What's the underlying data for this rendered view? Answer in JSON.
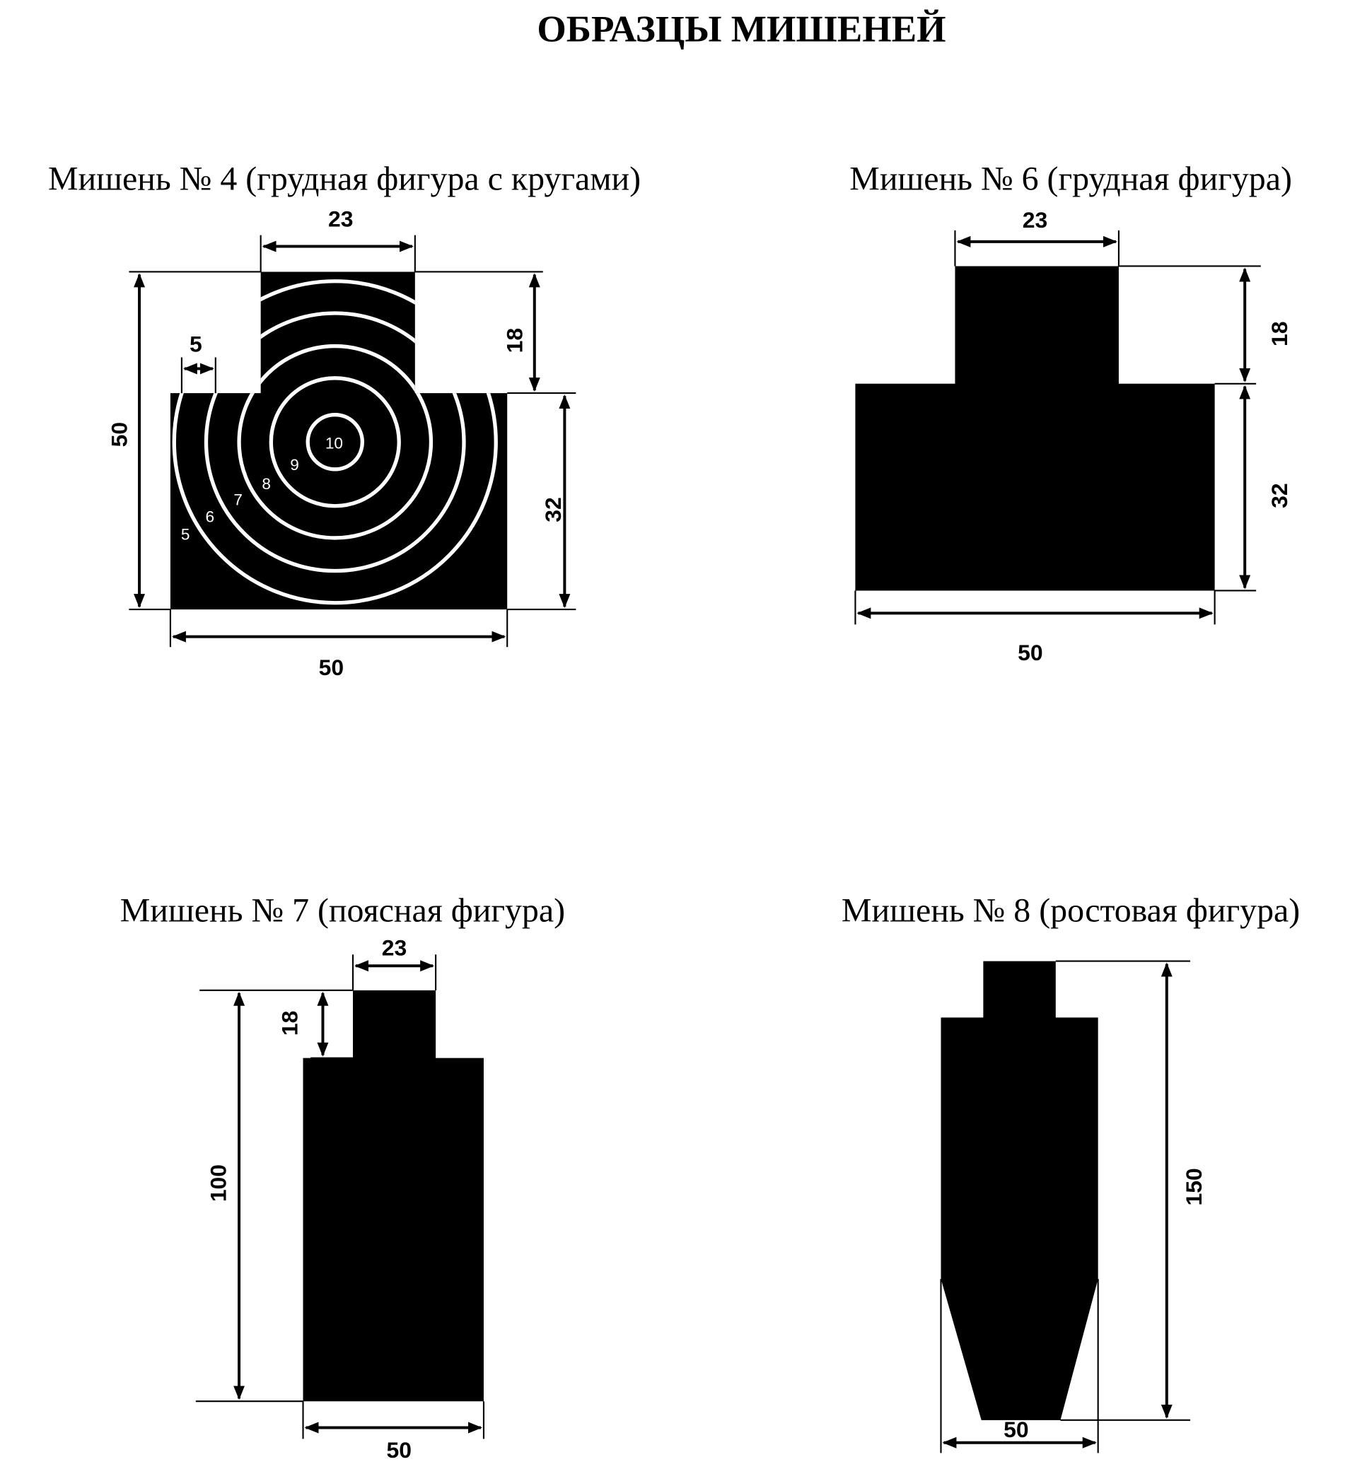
{
  "title": "ОБРАЗЦЫ МИШЕНЕЙ",
  "targets": [
    {
      "caption": "Мишень № 4 (грудная фигура с кругами)",
      "dims": {
        "head_width": "23",
        "head_height": "18",
        "total_height": "50",
        "body_height": "32",
        "width": "50",
        "ring_step": "5"
      },
      "rings": [
        "10",
        "9",
        "8",
        "7",
        "6",
        "5"
      ]
    },
    {
      "caption": "Мишень № 6 (грудная фигура)",
      "dims": {
        "head_width": "23",
        "head_height": "18",
        "body_height": "32",
        "width": "50"
      }
    },
    {
      "caption": "Мишень № 7 (поясная фигура)",
      "dims": {
        "head_width": "23",
        "head_height": "18",
        "total_height": "100",
        "width": "50"
      }
    },
    {
      "caption": "Мишень № 8 (ростовая фигура)",
      "dims": {
        "total_height": "150",
        "width": "50"
      }
    }
  ],
  "colors": {
    "figure": "#000000",
    "ring_lines": "#ffffff",
    "background": "#ffffff"
  }
}
